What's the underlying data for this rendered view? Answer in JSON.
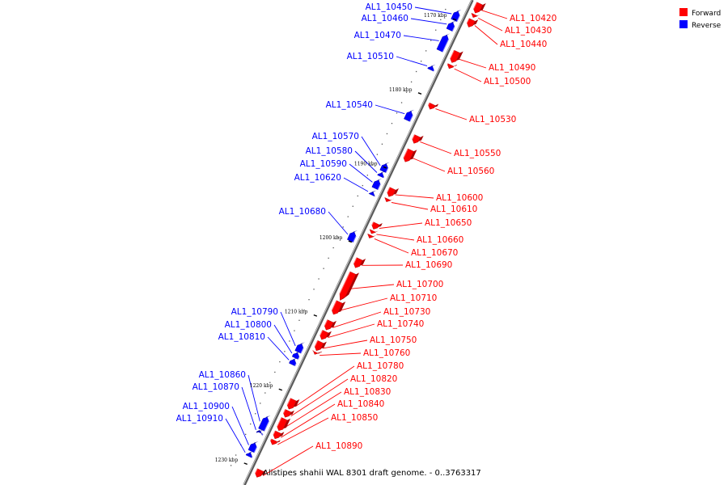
{
  "title": "Alistipes shahii WAL 8301 draft genome. - 0..3763317",
  "legend": [
    {
      "label": "Forward",
      "color": "#ff0000"
    },
    {
      "label": "Reverse",
      "color": "#0000ff"
    }
  ],
  "chart_data": {
    "type": "linear-genome-map",
    "title": "Alistipes shahii WAL 8301 draft genome. - 0..3763317",
    "view_range_kbp": [
      1167,
      1232
    ],
    "ticks": [
      {
        "kbp": 1170,
        "label": "1170 kbp"
      },
      {
        "kbp": 1180,
        "label": "1180 kbp"
      },
      {
        "kbp": 1190,
        "label": "1190 kbp"
      },
      {
        "kbp": 1200,
        "label": "1200 kbp"
      },
      {
        "kbp": 1210,
        "label": "1210 kbp"
      },
      {
        "kbp": 1220,
        "label": "1220 kbp"
      },
      {
        "kbp": 1230,
        "label": "1230 kbp"
      }
    ],
    "forward_genes": [
      {
        "label": "AL1_10420",
        "start": 1167.0,
        "end": 1168.3
      },
      {
        "label": "AL1_10430",
        "start": 1168.5,
        "end": 1168.9
      },
      {
        "label": "AL1_10440",
        "start": 1169.2,
        "end": 1170.2
      },
      {
        "label": "AL1_10490",
        "start": 1173.5,
        "end": 1175.0
      },
      {
        "label": "AL1_10500",
        "start": 1175.3,
        "end": 1175.8
      },
      {
        "label": "AL1_10530",
        "start": 1180.6,
        "end": 1181.3
      },
      {
        "label": "AL1_10550",
        "start": 1184.9,
        "end": 1185.9
      },
      {
        "label": "AL1_10560",
        "start": 1186.8,
        "end": 1188.4
      },
      {
        "label": "AL1_10600",
        "start": 1192.0,
        "end": 1193.1
      },
      {
        "label": "AL1_10610",
        "start": 1193.4,
        "end": 1193.8
      },
      {
        "label": "AL1_10650",
        "start": 1196.7,
        "end": 1197.5
      },
      {
        "label": "AL1_10660",
        "start": 1197.7,
        "end": 1198.1
      },
      {
        "label": "AL1_10670",
        "start": 1198.3,
        "end": 1198.7
      },
      {
        "label": "AL1_10690",
        "start": 1201.5,
        "end": 1202.7
      },
      {
        "label": "AL1_10700",
        "start": 1203.4,
        "end": 1207.1
      },
      {
        "label": "AL1_10710",
        "start": 1207.3,
        "end": 1209.0
      },
      {
        "label": "AL1_10730",
        "start": 1209.9,
        "end": 1211.1
      },
      {
        "label": "AL1_10740",
        "start": 1211.3,
        "end": 1212.4
      },
      {
        "label": "AL1_10750",
        "start": 1212.7,
        "end": 1213.9
      },
      {
        "label": "AL1_10760",
        "start": 1214.1,
        "end": 1214.4
      },
      {
        "label": "AL1_10780",
        "start": 1220.5,
        "end": 1221.8
      },
      {
        "label": "AL1_10820",
        "start": 1222.0,
        "end": 1222.9
      },
      {
        "label": "AL1_10830",
        "start": 1223.1,
        "end": 1224.7
      },
      {
        "label": "AL1_10840",
        "start": 1224.9,
        "end": 1225.8
      },
      {
        "label": "AL1_10850",
        "start": 1226.0,
        "end": 1226.6
      },
      {
        "label": "AL1_10890",
        "start": 1230.0,
        "end": 1231.0
      }
    ],
    "reverse_genes": [
      {
        "label": "AL1_10450",
        "start": 1169.0,
        "end": 1170.2
      },
      {
        "label": "AL1_10460",
        "start": 1170.5,
        "end": 1171.5
      },
      {
        "label": "AL1_10470",
        "start": 1172.2,
        "end": 1174.3
      },
      {
        "label": "AL1_10510",
        "start": 1176.4,
        "end": 1176.9
      },
      {
        "label": "AL1_10540",
        "start": 1182.5,
        "end": 1183.7
      },
      {
        "label": "AL1_10570",
        "start": 1189.6,
        "end": 1190.6
      },
      {
        "label": "AL1_10580",
        "start": 1190.8,
        "end": 1191.3
      },
      {
        "label": "AL1_10590",
        "start": 1191.8,
        "end": 1192.9
      },
      {
        "label": "AL1_10620",
        "start": 1193.4,
        "end": 1193.8
      },
      {
        "label": "AL1_10680",
        "start": 1198.8,
        "end": 1200.0
      },
      {
        "label": "AL1_10790",
        "start": 1213.9,
        "end": 1215.0
      },
      {
        "label": "AL1_10800",
        "start": 1215.1,
        "end": 1215.8
      },
      {
        "label": "AL1_10810",
        "start": 1216.0,
        "end": 1216.7
      },
      {
        "label": "AL1_10860",
        "start": 1223.8,
        "end": 1225.5
      },
      {
        "label": "AL1_10870",
        "start": 1225.7,
        "end": 1225.9
      },
      {
        "label": "AL1_10900",
        "start": 1227.3,
        "end": 1228.4
      },
      {
        "label": "AL1_10910",
        "start": 1228.6,
        "end": 1229.1
      }
    ]
  }
}
